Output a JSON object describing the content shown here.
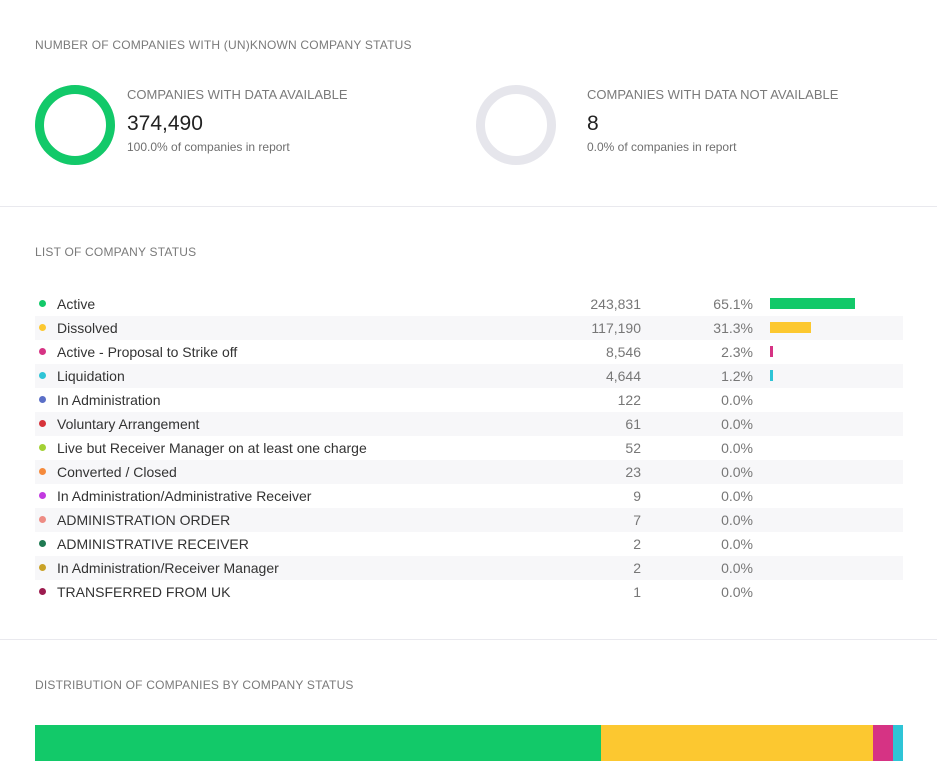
{
  "unknown_section": {
    "title": "NUMBER OF COMPANIES WITH (UN)KNOWN COMPANY STATUS",
    "available": {
      "label": "COMPANIES WITH DATA AVAILABLE",
      "value": "374,490",
      "subtext": "100.0% of companies in report",
      "fraction": 1.0,
      "color": "#12c969"
    },
    "not_available": {
      "label": "COMPANIES WITH DATA NOT AVAILABLE",
      "value": "8",
      "subtext": "0.0% of companies in report",
      "fraction": 0.0,
      "color": "#12c969"
    },
    "ring_track_color": "#e6e6ec"
  },
  "status_section": {
    "title": "LIST OF COMPANY STATUS",
    "rows": [
      {
        "name": "Active",
        "count": "243,831",
        "pct": "65.1%",
        "share": 0.651,
        "color": "#12c969"
      },
      {
        "name": "Dissolved",
        "count": "117,190",
        "pct": "31.3%",
        "share": 0.313,
        "color": "#fcc830"
      },
      {
        "name": "Active - Proposal to Strike off",
        "count": "8,546",
        "pct": "2.3%",
        "share": 0.023,
        "color": "#d63384"
      },
      {
        "name": "Liquidation",
        "count": "4,644",
        "pct": "1.2%",
        "share": 0.012,
        "color": "#2ec4d6"
      },
      {
        "name": "In Administration",
        "count": "122",
        "pct": "0.0%",
        "share": 0.0,
        "color": "#5b6fc7"
      },
      {
        "name": "Voluntary Arrangement",
        "count": "61",
        "pct": "0.0%",
        "share": 0.0,
        "color": "#d6333a"
      },
      {
        "name": "Live but Receiver Manager on at least one charge",
        "count": "52",
        "pct": "0.0%",
        "share": 0.0,
        "color": "#a3d134"
      },
      {
        "name": "Converted / Closed",
        "count": "23",
        "pct": "0.0%",
        "share": 0.0,
        "color": "#f58a3c"
      },
      {
        "name": "In Administration/Administrative Receiver",
        "count": "9",
        "pct": "0.0%",
        "share": 0.0,
        "color": "#c23ae0"
      },
      {
        "name": "ADMINISTRATION ORDER",
        "count": "7",
        "pct": "0.0%",
        "share": 0.0,
        "color": "#ee8c84"
      },
      {
        "name": "ADMINISTRATIVE RECEIVER",
        "count": "2",
        "pct": "0.0%",
        "share": 0.0,
        "color": "#1f7a52"
      },
      {
        "name": "In Administration/Receiver Manager",
        "count": "2",
        "pct": "0.0%",
        "share": 0.0,
        "color": "#c9a227"
      },
      {
        "name": "TRANSFERRED FROM UK",
        "count": "1",
        "pct": "0.0%",
        "share": 0.0,
        "color": "#9c1c4f"
      }
    ]
  },
  "distribution_section": {
    "title": "DISTRIBUTION OF COMPANIES BY COMPANY STATUS"
  }
}
